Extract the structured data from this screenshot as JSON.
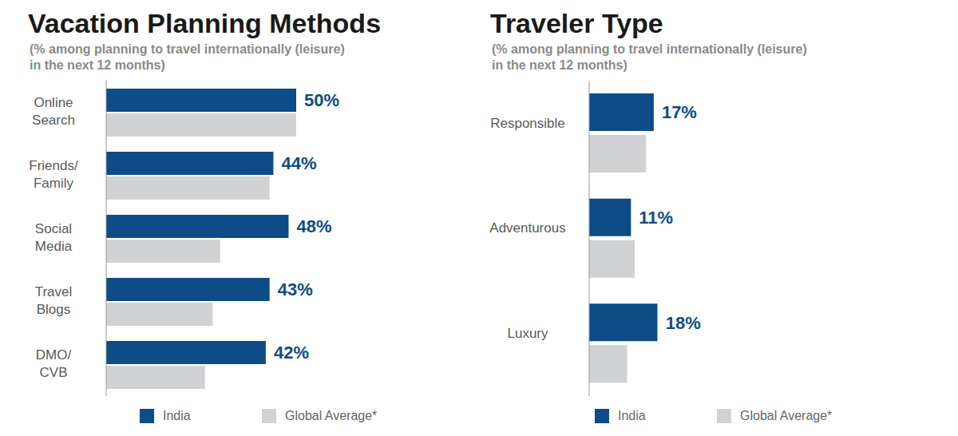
{
  "chart_data": [
    {
      "type": "bar",
      "orientation": "horizontal",
      "title": "Vacation Planning Methods",
      "subtitle": "(% among planning to travel internationally (leisure)\nin the next 12 months)",
      "categories": [
        "Online Search",
        "Friends/Family",
        "Social Media",
        "Travel Blogs",
        "DMO/CVB"
      ],
      "series": [
        {
          "name": "India",
          "color": "#0d4c86",
          "values": [
            50,
            44,
            48,
            43,
            42
          ],
          "data_labels": true,
          "value_labels": [
            "50%",
            "44%",
            "48%",
            "43%",
            "42%"
          ]
        },
        {
          "name": "Global Average*",
          "color": "#d1d2d4",
          "values": [
            50,
            43,
            30,
            28,
            26
          ]
        }
      ],
      "legend": "bottom",
      "grid": false,
      "tick_labels": "y"
    },
    {
      "type": "bar",
      "orientation": "horizontal",
      "title": "Traveler Type",
      "subtitle": "(% among planning to travel internationally (leisure)\nin the next 12 months)",
      "categories": [
        "Responsible",
        "Adventurous",
        "Luxury"
      ],
      "series": [
        {
          "name": "India",
          "color": "#0d4c86",
          "values": [
            17,
            11,
            18
          ],
          "data_labels": true,
          "value_labels": [
            "17%",
            "11%",
            "18%"
          ]
        },
        {
          "name": "Global Average*",
          "color": "#d1d2d4",
          "values": [
            15,
            12,
            10
          ]
        }
      ],
      "legend": "bottom",
      "grid": false,
      "tick_labels": "y"
    }
  ]
}
